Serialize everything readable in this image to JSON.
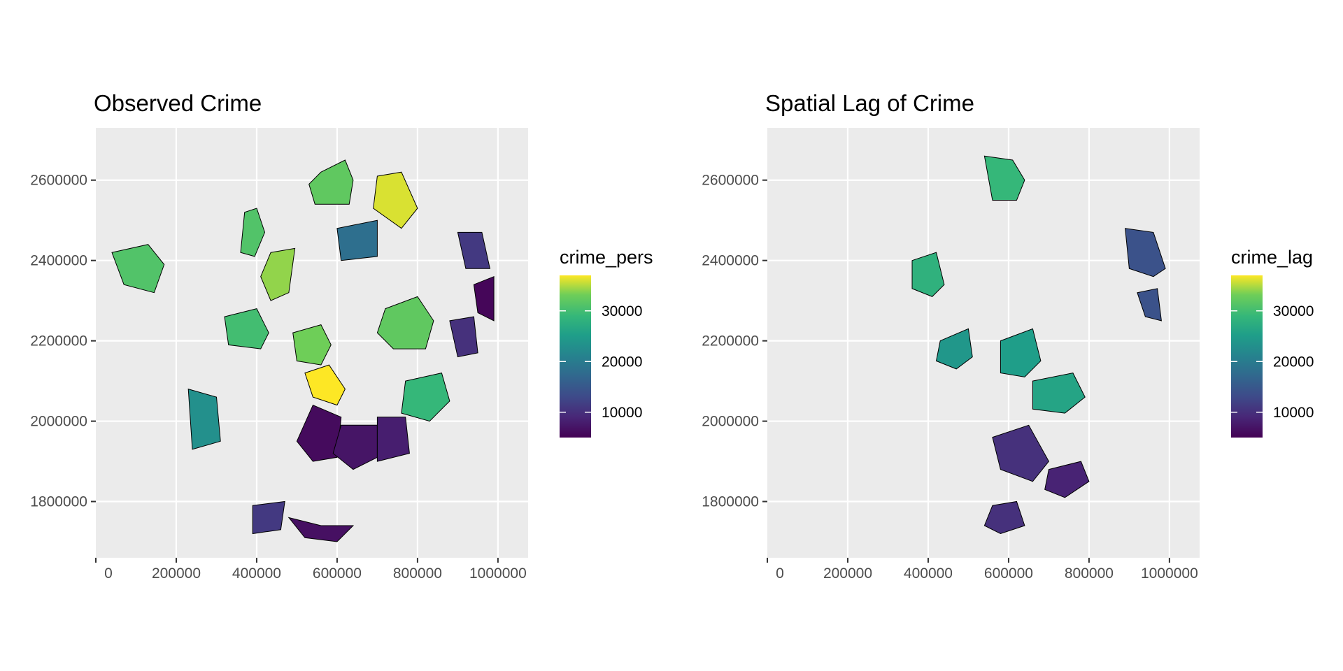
{
  "chart_data": [
    {
      "type": "choropleth",
      "title": "Observed Crime",
      "xlabel": "",
      "ylabel": "",
      "x_ticks": [
        0,
        200000,
        400000,
        600000,
        800000,
        1000000
      ],
      "y_ticks": [
        1800000,
        2000000,
        2200000,
        2400000,
        2600000
      ],
      "xlim": [
        0,
        1075000
      ],
      "ylim": [
        1660000,
        2730000
      ],
      "grid": true,
      "legend": {
        "title": "crime_pers",
        "ticks": [
          10000,
          20000,
          30000
        ],
        "range": [
          5000,
          37000
        ],
        "palette": "viridis",
        "placement": "right"
      },
      "regions": [
        {
          "x": [
            560000,
            620000,
            640000,
            630000,
            545000,
            530000
          ],
          "y": [
            2620000,
            2650000,
            2600000,
            2540000,
            2540000,
            2590000
          ],
          "value": 32000
        },
        {
          "x": [
            700000,
            760000,
            800000,
            760000,
            690000
          ],
          "y": [
            2610000,
            2620000,
            2530000,
            2480000,
            2530000
          ],
          "value": 36000
        },
        {
          "x": [
            370000,
            400000,
            420000,
            395000,
            360000
          ],
          "y": [
            2520000,
            2530000,
            2470000,
            2410000,
            2420000
          ],
          "value": 31000
        },
        {
          "x": [
            435000,
            495000,
            480000,
            435000,
            410000
          ],
          "y": [
            2420000,
            2430000,
            2320000,
            2300000,
            2360000
          ],
          "value": 34000
        },
        {
          "x": [
            40000,
            130000,
            170000,
            145000,
            70000
          ],
          "y": [
            2420000,
            2440000,
            2390000,
            2320000,
            2340000
          ],
          "value": 31000
        },
        {
          "x": [
            720000,
            800000,
            840000,
            820000,
            740000,
            700000
          ],
          "y": [
            2280000,
            2310000,
            2250000,
            2180000,
            2180000,
            2220000
          ],
          "value": 32000
        },
        {
          "x": [
            490000,
            560000,
            585000,
            560000,
            500000
          ],
          "y": [
            2220000,
            2240000,
            2190000,
            2140000,
            2150000
          ],
          "value": 33000
        },
        {
          "x": [
            520000,
            580000,
            620000,
            600000,
            540000
          ],
          "y": [
            2120000,
            2140000,
            2080000,
            2040000,
            2060000
          ],
          "value": 37000
        },
        {
          "x": [
            770000,
            860000,
            880000,
            830000,
            760000
          ],
          "y": [
            2100000,
            2120000,
            2050000,
            2000000,
            2020000
          ],
          "value": 29000
        },
        {
          "x": [
            320000,
            400000,
            430000,
            410000,
            330000
          ],
          "y": [
            2260000,
            2280000,
            2220000,
            2180000,
            2190000
          ],
          "value": 30000
        },
        {
          "x": [
            540000,
            610000,
            600000,
            540000,
            500000
          ],
          "y": [
            2040000,
            2010000,
            1910000,
            1900000,
            1950000
          ],
          "value": 6000
        },
        {
          "x": [
            610000,
            700000,
            700000,
            640000,
            590000
          ],
          "y": [
            1990000,
            1990000,
            1910000,
            1880000,
            1920000
          ],
          "value": 7000
        },
        {
          "x": [
            700000,
            770000,
            780000,
            700000
          ],
          "y": [
            2010000,
            2010000,
            1920000,
            1900000
          ],
          "value": 8000
        },
        {
          "x": [
            480000,
            560000,
            610000,
            640000,
            600000,
            520000
          ],
          "y": [
            1760000,
            1740000,
            1740000,
            1740000,
            1700000,
            1710000
          ],
          "value": 6500
        },
        {
          "x": [
            940000,
            990000,
            990000,
            950000
          ],
          "y": [
            2340000,
            2360000,
            2250000,
            2270000
          ],
          "value": 5500
        },
        {
          "x": [
            900000,
            960000,
            980000,
            920000
          ],
          "y": [
            2470000,
            2470000,
            2380000,
            2380000
          ],
          "value": 11000
        },
        {
          "x": [
            880000,
            940000,
            950000,
            900000
          ],
          "y": [
            2250000,
            2260000,
            2170000,
            2160000
          ],
          "value": 10000
        },
        {
          "x": [
            390000,
            470000,
            460000,
            390000
          ],
          "y": [
            1790000,
            1800000,
            1730000,
            1720000
          ],
          "value": 11000
        },
        {
          "x": [
            230000,
            300000,
            310000,
            240000
          ],
          "y": [
            2080000,
            2060000,
            1950000,
            1930000
          ],
          "value": 23000
        },
        {
          "x": [
            600000,
            700000,
            700000,
            610000
          ],
          "y": [
            2480000,
            2500000,
            2410000,
            2400000
          ],
          "value": 18000
        }
      ]
    },
    {
      "type": "choropleth",
      "title": "Spatial Lag of Crime",
      "xlabel": "",
      "ylabel": "",
      "x_ticks": [
        0,
        200000,
        400000,
        600000,
        800000,
        1000000
      ],
      "y_ticks": [
        1800000,
        2000000,
        2200000,
        2400000,
        2600000
      ],
      "xlim": [
        0,
        1075000
      ],
      "ylim": [
        1660000,
        2730000
      ],
      "grid": true,
      "legend": {
        "title": "crime_lag",
        "ticks": [
          10000,
          20000,
          30000
        ],
        "range": [
          5000,
          37000
        ],
        "palette": "viridis",
        "placement": "right"
      },
      "regions": [
        {
          "x": [
            540000,
            610000,
            640000,
            620000,
            560000
          ],
          "y": [
            2660000,
            2650000,
            2600000,
            2550000,
            2550000
          ],
          "value": 29000
        },
        {
          "x": [
            360000,
            420000,
            440000,
            410000,
            360000
          ],
          "y": [
            2400000,
            2420000,
            2340000,
            2310000,
            2330000
          ],
          "value": 28000
        },
        {
          "x": [
            430000,
            500000,
            510000,
            470000,
            420000
          ],
          "y": [
            2200000,
            2230000,
            2160000,
            2130000,
            2150000
          ],
          "value": 24000
        },
        {
          "x": [
            580000,
            660000,
            680000,
            640000,
            580000
          ],
          "y": [
            2200000,
            2230000,
            2150000,
            2110000,
            2120000
          ],
          "value": 25000
        },
        {
          "x": [
            660000,
            760000,
            790000,
            740000,
            660000
          ],
          "y": [
            2100000,
            2120000,
            2060000,
            2020000,
            2030000
          ],
          "value": 26000
        },
        {
          "x": [
            560000,
            650000,
            700000,
            660000,
            580000
          ],
          "y": [
            1960000,
            1990000,
            1900000,
            1850000,
            1880000
          ],
          "value": 10000
        },
        {
          "x": [
            700000,
            780000,
            800000,
            740000,
            690000
          ],
          "y": [
            1880000,
            1900000,
            1850000,
            1810000,
            1830000
          ],
          "value": 8500
        },
        {
          "x": [
            560000,
            620000,
            640000,
            580000,
            540000
          ],
          "y": [
            1790000,
            1800000,
            1740000,
            1720000,
            1740000
          ],
          "value": 10000
        },
        {
          "x": [
            890000,
            960000,
            990000,
            960000,
            900000
          ],
          "y": [
            2480000,
            2470000,
            2380000,
            2360000,
            2380000
          ],
          "value": 14000
        },
        {
          "x": [
            920000,
            970000,
            980000,
            940000
          ],
          "y": [
            2320000,
            2330000,
            2250000,
            2260000
          ],
          "value": 14000
        }
      ]
    }
  ]
}
